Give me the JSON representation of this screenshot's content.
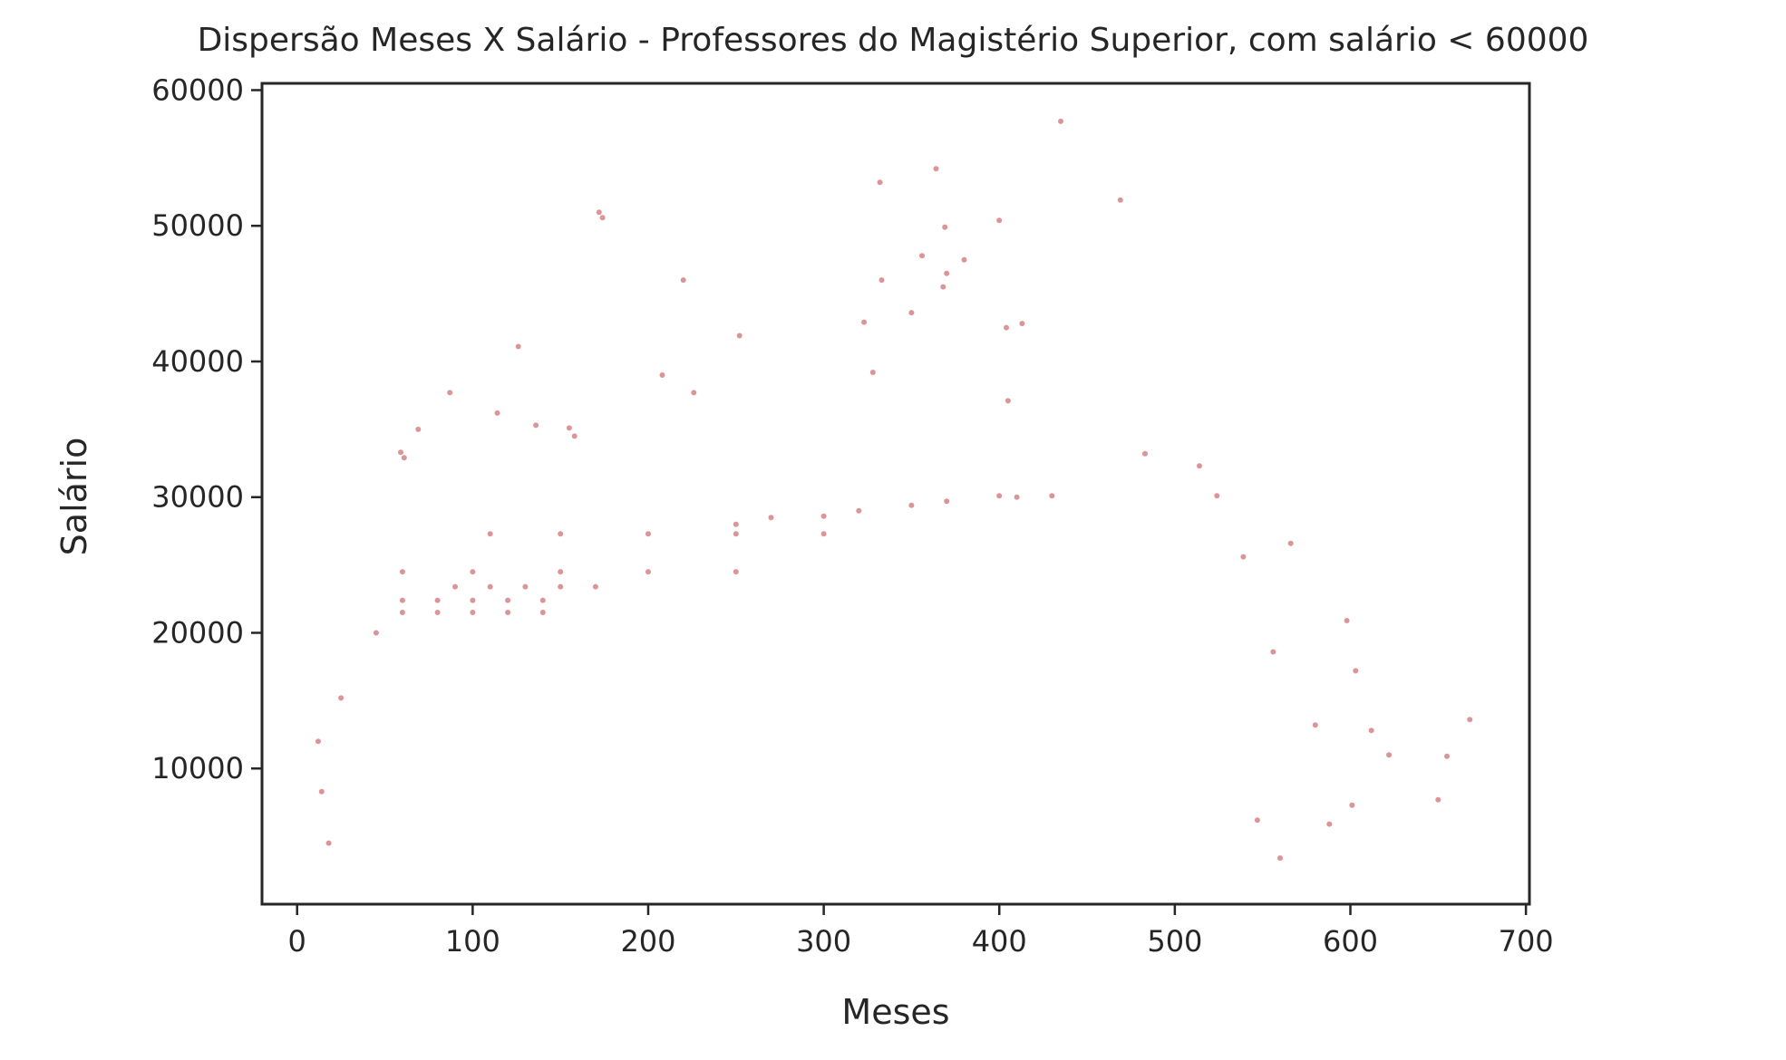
{
  "chart_data": {
    "type": "scatter",
    "title": "Dispersão Meses X Salário - Professores do Magistério Superior, com salário < 60000",
    "xlabel": "Meses",
    "ylabel": "Salário",
    "xlim": [
      -20,
      702
    ],
    "ylim": [
      0,
      60500
    ],
    "xticks": [
      0,
      100,
      200,
      300,
      400,
      500,
      600,
      700
    ],
    "xtick_labels": [
      "0",
      "100",
      "200",
      "300",
      "400",
      "500",
      "600",
      "700"
    ],
    "yticks": [
      10000,
      20000,
      30000,
      40000,
      50000,
      60000
    ],
    "ytick_labels": [
      "10000",
      "20000",
      "30000",
      "40000",
      "50000",
      "60000"
    ],
    "grid": false,
    "legend": "none",
    "marker_color": "#c44e52",
    "marker_alpha": 0.6,
    "series": [
      {
        "points": [
          [
            435,
            57700
          ],
          [
            364,
            54200
          ],
          [
            332,
            53200
          ],
          [
            469,
            51900
          ],
          [
            172,
            51000
          ],
          [
            174,
            50600
          ],
          [
            400,
            50400
          ],
          [
            369,
            49900
          ],
          [
            356,
            47800
          ],
          [
            380,
            47500
          ],
          [
            370,
            46500
          ],
          [
            220,
            46000
          ],
          [
            333,
            46000
          ],
          [
            368,
            45500
          ],
          [
            350,
            43600
          ],
          [
            323,
            42900
          ],
          [
            413,
            42800
          ],
          [
            404,
            42500
          ],
          [
            252,
            41900
          ],
          [
            126,
            41100
          ],
          [
            328,
            39200
          ],
          [
            208,
            39000
          ],
          [
            226,
            37700
          ],
          [
            87,
            37700
          ],
          [
            405,
            37100
          ],
          [
            114,
            36200
          ],
          [
            136,
            35300
          ],
          [
            155,
            35100
          ],
          [
            69,
            35000
          ],
          [
            158,
            34500
          ],
          [
            483,
            33200
          ],
          [
            59,
            33300
          ],
          [
            61,
            32900
          ],
          [
            514,
            32300
          ],
          [
            524,
            30100
          ],
          [
            566,
            26600
          ],
          [
            539,
            25600
          ],
          [
            598,
            20900
          ],
          [
            622,
            11000
          ],
          [
            655,
            10900
          ],
          [
            668,
            13600
          ],
          [
            650,
            7700
          ],
          [
            601,
            7300
          ],
          [
            588,
            5900
          ],
          [
            580,
            13200
          ],
          [
            612,
            12800
          ],
          [
            603,
            17200
          ],
          [
            12,
            12000
          ],
          [
            14,
            8300
          ],
          [
            556,
            18600
          ],
          [
            547,
            6200
          ],
          [
            560,
            3400
          ],
          [
            18,
            4500
          ],
          [
            25,
            15200
          ],
          [
            45,
            20000
          ],
          [
            60,
            21500
          ],
          [
            80,
            21500
          ],
          [
            100,
            21500
          ],
          [
            120,
            21500
          ],
          [
            140,
            21500
          ],
          [
            60,
            22400
          ],
          [
            80,
            22400
          ],
          [
            100,
            22400
          ],
          [
            120,
            22400
          ],
          [
            140,
            22400
          ],
          [
            90,
            23400
          ],
          [
            110,
            23400
          ],
          [
            130,
            23400
          ],
          [
            150,
            23400
          ],
          [
            170,
            23400
          ],
          [
            60,
            24500
          ],
          [
            100,
            24500
          ],
          [
            150,
            24500
          ],
          [
            200,
            24500
          ],
          [
            250,
            24500
          ],
          [
            110,
            27300
          ],
          [
            150,
            27300
          ],
          [
            200,
            27300
          ],
          [
            250,
            27300
          ],
          [
            300,
            27300
          ],
          [
            250,
            28000
          ],
          [
            300,
            28600
          ],
          [
            350,
            29400
          ],
          [
            400,
            30100
          ],
          [
            430,
            30100
          ],
          [
            270,
            28500
          ],
          [
            320,
            29000
          ],
          [
            370,
            29700
          ],
          [
            410,
            30000
          ]
        ]
      }
    ]
  }
}
